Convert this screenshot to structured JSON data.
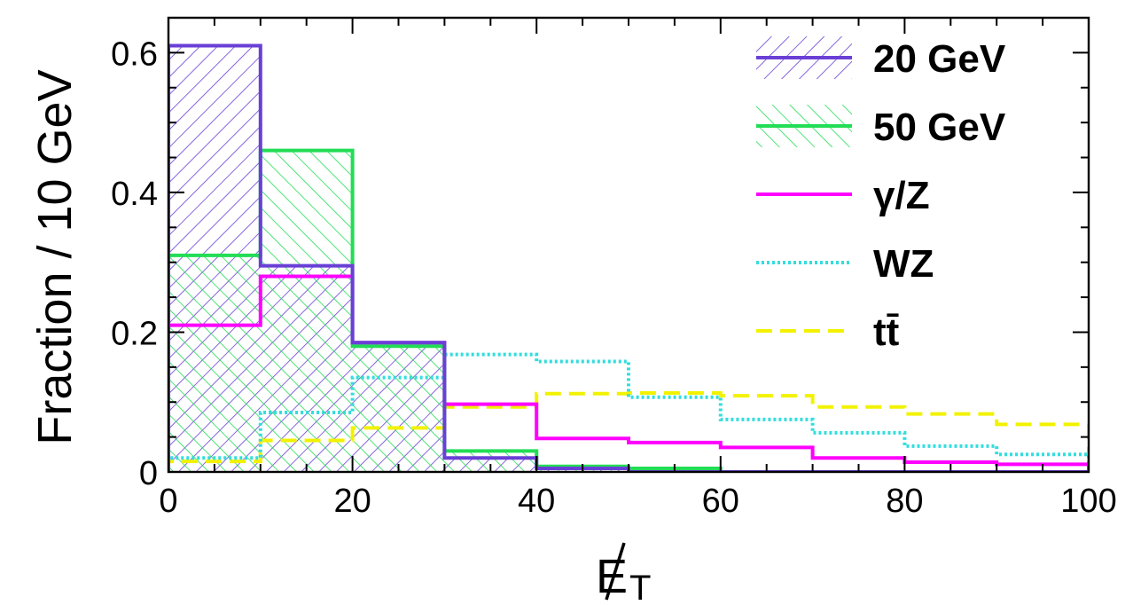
{
  "chart_data": {
    "type": "histogram",
    "title": "",
    "xlabel": "E",
    "xlabel_subscript": "T",
    "ylabel": "Fraction / 10 GeV",
    "xlim": [
      0,
      100
    ],
    "ylim": [
      0,
      0.65
    ],
    "bin_edges": [
      0,
      10,
      20,
      30,
      40,
      50,
      60,
      70,
      80,
      90,
      100
    ],
    "x_ticks": [
      "0",
      "20",
      "40",
      "60",
      "80",
      "100"
    ],
    "y_ticks": [
      "0",
      "0.2",
      "0.4",
      "0.6"
    ],
    "legend_position": "top-right",
    "series": [
      {
        "key": "s20",
        "name": "20 GeV",
        "color": "#6a3fd6",
        "style": "solid",
        "fill": "hatch-forward",
        "values": [
          0.61,
          0.295,
          0.185,
          0.02,
          0.005,
          0.0,
          0.0,
          0.0,
          0.0,
          0.0
        ]
      },
      {
        "key": "s50",
        "name": "50 GeV",
        "color": "#22dd55",
        "style": "solid",
        "fill": "hatch-back",
        "values": [
          0.31,
          0.46,
          0.18,
          0.03,
          0.008,
          0.005,
          0.0,
          0.0,
          0.0,
          0.0
        ]
      },
      {
        "key": "gz",
        "name": "γ/Z",
        "color": "#ff00ff",
        "style": "solid",
        "fill": "none",
        "values": [
          0.21,
          0.28,
          0.185,
          0.097,
          0.048,
          0.042,
          0.035,
          0.02,
          0.014,
          0.011
        ]
      },
      {
        "key": "wz",
        "name": "WZ",
        "color": "#33dddd",
        "style": "dotted",
        "fill": "none",
        "values": [
          0.02,
          0.085,
          0.135,
          0.168,
          0.158,
          0.107,
          0.075,
          0.056,
          0.037,
          0.025
        ]
      },
      {
        "key": "tt",
        "name": "tt̄",
        "color": "#f2f200",
        "style": "dashed",
        "fill": "none",
        "values": [
          0.015,
          0.045,
          0.063,
          0.093,
          0.112,
          0.113,
          0.109,
          0.093,
          0.083,
          0.068
        ]
      }
    ]
  }
}
